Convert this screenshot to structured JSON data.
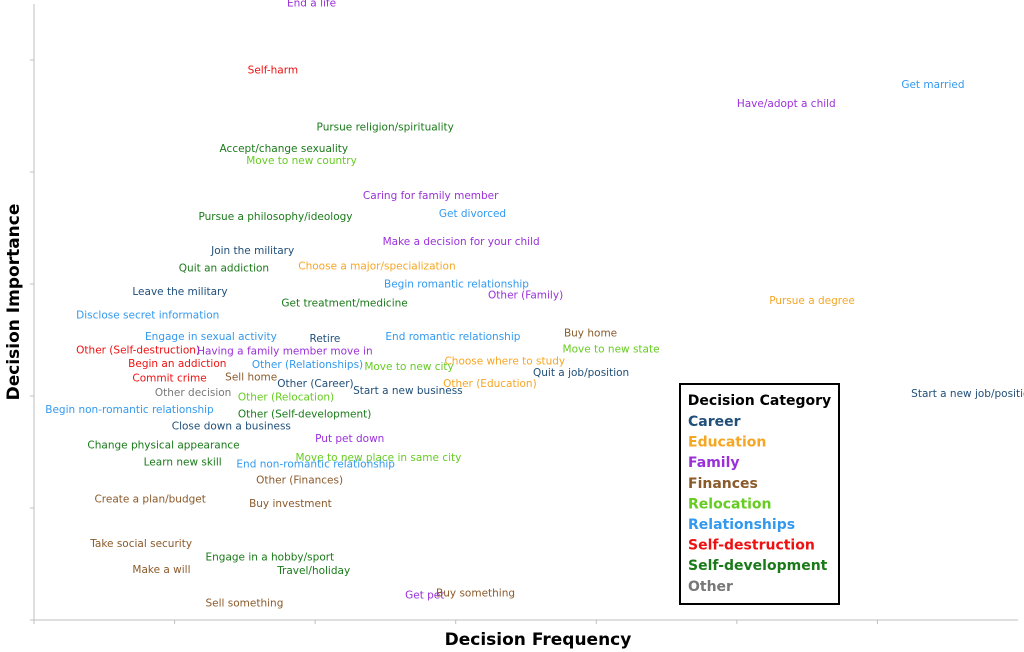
{
  "chart_data": {
    "type": "scatter",
    "title": "",
    "xlabel": "Decision Frequency",
    "ylabel": "Decision Importance",
    "grid": false,
    "legend": {
      "title": "Decision Category",
      "placement": "bottom-right",
      "items": [
        {
          "name": "Career",
          "color": "#1f4e79"
        },
        {
          "name": "Education",
          "color": "#f5a623"
        },
        {
          "name": "Family",
          "color": "#9b30d9"
        },
        {
          "name": "Finances",
          "color": "#8b5a2b"
        },
        {
          "name": "Relocation",
          "color": "#66cc22"
        },
        {
          "name": "Relationships",
          "color": "#3399ee"
        },
        {
          "name": "Self-destruction",
          "color": "#ee1111"
        },
        {
          "name": "Self-development",
          "color": "#1a7a1a"
        },
        {
          "name": "Other",
          "color": "#777777"
        }
      ]
    },
    "xlim": [
      0,
      7
    ],
    "ylim": [
      0,
      5.5
    ],
    "points": [
      {
        "label": "End a life",
        "category": "Family",
        "x": 1.8,
        "y": 5.48
      },
      {
        "label": "Self-harm",
        "category": "Self-destruction",
        "x": 1.52,
        "y": 4.88
      },
      {
        "label": "Get married",
        "category": "Relationships",
        "x": 6.17,
        "y": 4.75
      },
      {
        "label": "Have/adopt a child",
        "category": "Family",
        "x": 5.0,
        "y": 4.58
      },
      {
        "label": "Pursue religion/spirituality",
        "category": "Self-development",
        "x": 2.01,
        "y": 4.37
      },
      {
        "label": "Accept/change sexuality",
        "category": "Self-development",
        "x": 1.32,
        "y": 4.18
      },
      {
        "label": "Move to new country",
        "category": "Relocation",
        "x": 1.51,
        "y": 4.07
      },
      {
        "label": "Caring for family member",
        "category": "Family",
        "x": 2.34,
        "y": 3.76
      },
      {
        "label": "Get divorced",
        "category": "Relationships",
        "x": 2.88,
        "y": 3.6
      },
      {
        "label": "Pursue a philosophy/ideology",
        "category": "Self-development",
        "x": 1.17,
        "y": 3.57
      },
      {
        "label": "Make a decision for your child",
        "category": "Family",
        "x": 2.48,
        "y": 3.35
      },
      {
        "label": "Join the military",
        "category": "Career",
        "x": 1.26,
        "y": 3.27
      },
      {
        "label": "Quit an addiction",
        "category": "Self-development",
        "x": 1.03,
        "y": 3.11
      },
      {
        "label": "Choose a major/specialization",
        "category": "Education",
        "x": 1.88,
        "y": 3.13
      },
      {
        "label": "Begin romantic relationship",
        "category": "Relationships",
        "x": 2.49,
        "y": 2.97
      },
      {
        "label": "Other (Family)",
        "category": "Family",
        "x": 3.23,
        "y": 2.87
      },
      {
        "label": "Leave the military",
        "category": "Career",
        "x": 0.7,
        "y": 2.9
      },
      {
        "label": "Pursue a degree",
        "category": "Education",
        "x": 5.23,
        "y": 2.82
      },
      {
        "label": "Get treatment/medicine",
        "category": "Self-development",
        "x": 1.76,
        "y": 2.8
      },
      {
        "label": "Disclose secret information",
        "category": "Relationships",
        "x": 0.3,
        "y": 2.69
      },
      {
        "label": "Engage in sexual activity",
        "category": "Relationships",
        "x": 0.79,
        "y": 2.5
      },
      {
        "label": "Retire",
        "category": "Career",
        "x": 1.96,
        "y": 2.48
      },
      {
        "label": "End romantic relationship",
        "category": "Relationships",
        "x": 2.5,
        "y": 2.5
      },
      {
        "label": "Buy home",
        "category": "Finances",
        "x": 3.77,
        "y": 2.53
      },
      {
        "label": "Other (Self-destruction)",
        "category": "Self-destruction",
        "x": 0.3,
        "y": 2.38
      },
      {
        "label": "Having a family member move in",
        "category": "Family",
        "x": 1.16,
        "y": 2.37
      },
      {
        "label": "Move to new state",
        "category": "Relocation",
        "x": 3.76,
        "y": 2.39
      },
      {
        "label": "Choose where to study",
        "category": "Education",
        "x": 2.92,
        "y": 2.28
      },
      {
        "label": "Begin an addiction",
        "category": "Self-destruction",
        "x": 0.67,
        "y": 2.26
      },
      {
        "label": "Other (Relationships)",
        "category": "Relationships",
        "x": 1.55,
        "y": 2.25
      },
      {
        "label": "Move to new city",
        "category": "Relocation",
        "x": 2.35,
        "y": 2.23
      },
      {
        "label": "Quit a job/position",
        "category": "Career",
        "x": 3.55,
        "y": 2.18
      },
      {
        "label": "Start a new job/position",
        "category": "Career",
        "x": 6.24,
        "y": 1.99
      },
      {
        "label": "Commit crime",
        "category": "Self-destruction",
        "x": 0.7,
        "y": 2.13
      },
      {
        "label": "Sell home",
        "category": "Finances",
        "x": 1.36,
        "y": 2.14
      },
      {
        "label": "Other (Career)",
        "category": "Career",
        "x": 1.73,
        "y": 2.08
      },
      {
        "label": "Other (Education)",
        "category": "Education",
        "x": 2.91,
        "y": 2.08
      },
      {
        "label": "Other decision",
        "category": "Other",
        "x": 0.86,
        "y": 2.0
      },
      {
        "label": "Start a new business",
        "category": "Career",
        "x": 2.27,
        "y": 2.02
      },
      {
        "label": "Other (Relocation)",
        "category": "Relocation",
        "x": 1.45,
        "y": 1.96
      },
      {
        "label": "Begin non-romantic relationship",
        "category": "Relationships",
        "x": 0.08,
        "y": 1.85
      },
      {
        "label": "Other (Self-development)",
        "category": "Self-development",
        "x": 1.45,
        "y": 1.81
      },
      {
        "label": "Close down a business",
        "category": "Career",
        "x": 0.98,
        "y": 1.7
      },
      {
        "label": "Put pet down",
        "category": "Family",
        "x": 2.0,
        "y": 1.59
      },
      {
        "label": "Change physical appearance",
        "category": "Self-development",
        "x": 0.38,
        "y": 1.53
      },
      {
        "label": "Move to new place in same city",
        "category": "Relocation",
        "x": 1.86,
        "y": 1.42
      },
      {
        "label": "Learn new skill",
        "category": "Self-development",
        "x": 0.78,
        "y": 1.38
      },
      {
        "label": "End non-romantic relationship",
        "category": "Relationships",
        "x": 1.44,
        "y": 1.36
      },
      {
        "label": "Other (Finances)",
        "category": "Finances",
        "x": 1.58,
        "y": 1.22
      },
      {
        "label": "Create a plan/budget",
        "category": "Finances",
        "x": 0.43,
        "y": 1.05
      },
      {
        "label": "Buy investment",
        "category": "Finances",
        "x": 1.53,
        "y": 1.01
      },
      {
        "label": "Take social security",
        "category": "Finances",
        "x": 0.4,
        "y": 0.65
      },
      {
        "label": "Engage in a hobby/sport",
        "category": "Self-development",
        "x": 1.22,
        "y": 0.53
      },
      {
        "label": "Make a will",
        "category": "Finances",
        "x": 0.7,
        "y": 0.42
      },
      {
        "label": "Travel/holiday",
        "category": "Self-development",
        "x": 1.73,
        "y": 0.41
      },
      {
        "label": "Get pet",
        "category": "Family",
        "x": 2.64,
        "y": 0.19
      },
      {
        "label": "Buy something",
        "category": "Finances",
        "x": 2.86,
        "y": 0.21
      },
      {
        "label": "Sell something",
        "category": "Finances",
        "x": 1.22,
        "y": 0.12
      }
    ]
  }
}
